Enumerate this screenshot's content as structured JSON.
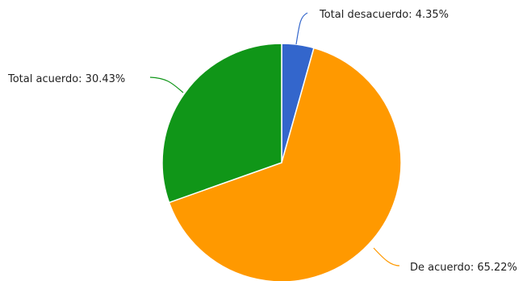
{
  "chart_data": {
    "type": "pie",
    "slices": [
      {
        "label": "Total desacuerdo",
        "value": 4.35,
        "display": "4.35%",
        "color": "#3366cc"
      },
      {
        "label": "De acuerdo",
        "value": 65.22,
        "display": "65.22%",
        "color": "#ff9900"
      },
      {
        "label": "Total acuerdo",
        "value": 30.43,
        "display": "30.43%",
        "color": "#109618"
      }
    ],
    "start_angle": "12 o'clock",
    "direction": "clockwise",
    "legend": "none",
    "labels": "outside with leader lines"
  }
}
